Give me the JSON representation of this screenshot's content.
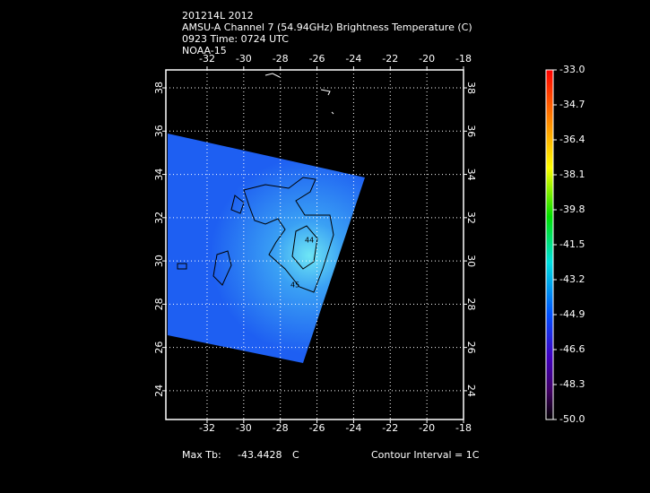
{
  "header": {
    "lines": [
      "201214L 2012",
      "AMSU-A Channel 7 (54.94GHz) Brightness Temperature (C)",
      "0923 Time: 0724 UTC",
      "NOAA-15"
    ]
  },
  "map": {
    "lonlim": [
      -34.25,
      -18
    ],
    "latlim": [
      22.67,
      38.83
    ],
    "lon_ticks": [
      -32,
      -30,
      -28,
      -26,
      -24,
      -22,
      -20,
      -18
    ],
    "lat_ticks": [
      24,
      26,
      28,
      30,
      32,
      34,
      36,
      38
    ],
    "contour_labels": [
      "44",
      "45"
    ]
  },
  "colorbar": {
    "range": [
      -50,
      -33
    ],
    "ticks": [
      {
        "value": -33,
        "label": "-33.0"
      },
      {
        "value": -34.7,
        "label": "-34.7"
      },
      {
        "value": -36.4,
        "label": "-36.4"
      },
      {
        "value": -38.1,
        "label": "-38.1"
      },
      {
        "value": -39.8,
        "label": "-39.8"
      },
      {
        "value": -41.5,
        "label": "-41.5"
      },
      {
        "value": -43.2,
        "label": "-43.2"
      },
      {
        "value": -44.9,
        "label": "-44.9"
      },
      {
        "value": -46.6,
        "label": "-46.6"
      },
      {
        "value": -48.3,
        "label": "-48.3"
      },
      {
        "value": -50,
        "label": "-50.0"
      }
    ]
  },
  "footer": {
    "max_label": "Max Tb:",
    "max_value": "-43.4428",
    "max_unit": "C",
    "contour_interval": "Contour Interval = 1C"
  }
}
